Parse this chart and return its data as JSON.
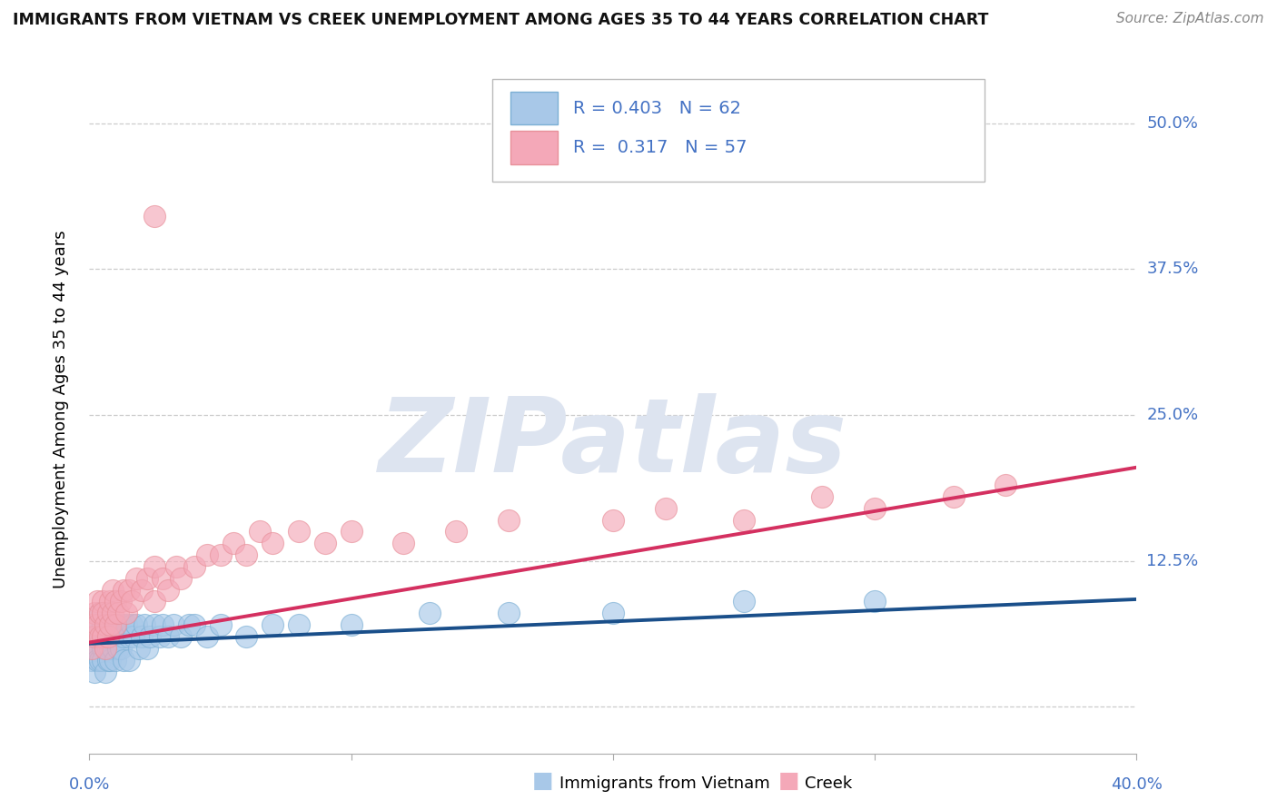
{
  "title": "IMMIGRANTS FROM VIETNAM VS CREEK UNEMPLOYMENT AMONG AGES 35 TO 44 YEARS CORRELATION CHART",
  "source": "Source: ZipAtlas.com",
  "ylabel": "Unemployment Among Ages 35 to 44 years",
  "legend1_label": "Immigrants from Vietnam",
  "legend2_label": "Creek",
  "R_vietnam": "0.403",
  "N_vietnam": 62,
  "R_creek": "0.317",
  "N_creek": 57,
  "xlim": [
    0.0,
    0.4
  ],
  "ylim": [
    -0.04,
    0.55
  ],
  "yticks": [
    0.0,
    0.125,
    0.25,
    0.375,
    0.5
  ],
  "ytick_right_labels": [
    "",
    "12.5%",
    "25.0%",
    "37.5%",
    "50.0%"
  ],
  "color_vietnam_face": "#a8c8e8",
  "color_vietnam_edge": "#7bafd4",
  "color_creek_face": "#f4a8b8",
  "color_creek_edge": "#e8909a",
  "line_color_vietnam": "#1a4f8a",
  "line_color_creek": "#d43060",
  "grid_color": "#cccccc",
  "watermark_color": "#dde4f0",
  "axis_label_color": "#4472c4",
  "legend_color": "#4472c4",
  "legend_creek_color": "#4472c4",
  "title_color": "#111111",
  "source_color": "#888888",
  "viet_x": [
    0.001,
    0.001,
    0.002,
    0.002,
    0.003,
    0.003,
    0.003,
    0.004,
    0.004,
    0.004,
    0.005,
    0.005,
    0.005,
    0.005,
    0.006,
    0.006,
    0.007,
    0.007,
    0.007,
    0.008,
    0.008,
    0.008,
    0.009,
    0.009,
    0.01,
    0.01,
    0.011,
    0.011,
    0.012,
    0.012,
    0.013,
    0.013,
    0.014,
    0.015,
    0.015,
    0.016,
    0.017,
    0.018,
    0.019,
    0.02,
    0.021,
    0.022,
    0.023,
    0.025,
    0.027,
    0.028,
    0.03,
    0.032,
    0.035,
    0.038,
    0.04,
    0.045,
    0.05,
    0.06,
    0.07,
    0.08,
    0.1,
    0.13,
    0.16,
    0.2,
    0.25,
    0.3
  ],
  "viet_y": [
    0.06,
    0.04,
    0.05,
    0.03,
    0.07,
    0.05,
    0.04,
    0.06,
    0.04,
    0.08,
    0.05,
    0.07,
    0.04,
    0.06,
    0.05,
    0.03,
    0.06,
    0.05,
    0.04,
    0.07,
    0.05,
    0.04,
    0.06,
    0.05,
    0.07,
    0.04,
    0.06,
    0.05,
    0.07,
    0.05,
    0.06,
    0.04,
    0.07,
    0.06,
    0.04,
    0.07,
    0.06,
    0.07,
    0.05,
    0.06,
    0.07,
    0.05,
    0.06,
    0.07,
    0.06,
    0.07,
    0.06,
    0.07,
    0.06,
    0.07,
    0.07,
    0.06,
    0.07,
    0.06,
    0.07,
    0.07,
    0.07,
    0.08,
    0.08,
    0.08,
    0.09,
    0.09
  ],
  "creek_x": [
    0.001,
    0.001,
    0.002,
    0.002,
    0.003,
    0.003,
    0.004,
    0.004,
    0.005,
    0.005,
    0.005,
    0.006,
    0.006,
    0.007,
    0.007,
    0.008,
    0.008,
    0.009,
    0.009,
    0.01,
    0.01,
    0.011,
    0.012,
    0.013,
    0.014,
    0.015,
    0.016,
    0.018,
    0.02,
    0.022,
    0.025,
    0.025,
    0.028,
    0.03,
    0.033,
    0.035,
    0.04,
    0.045,
    0.05,
    0.055,
    0.06,
    0.065,
    0.07,
    0.08,
    0.09,
    0.1,
    0.12,
    0.14,
    0.16,
    0.2,
    0.22,
    0.25,
    0.28,
    0.3,
    0.33,
    0.35,
    0.025
  ],
  "creek_y": [
    0.07,
    0.05,
    0.08,
    0.06,
    0.09,
    0.07,
    0.06,
    0.08,
    0.09,
    0.06,
    0.08,
    0.07,
    0.05,
    0.08,
    0.06,
    0.09,
    0.07,
    0.1,
    0.08,
    0.09,
    0.07,
    0.08,
    0.09,
    0.1,
    0.08,
    0.1,
    0.09,
    0.11,
    0.1,
    0.11,
    0.09,
    0.12,
    0.11,
    0.1,
    0.12,
    0.11,
    0.12,
    0.13,
    0.13,
    0.14,
    0.13,
    0.15,
    0.14,
    0.15,
    0.14,
    0.15,
    0.14,
    0.15,
    0.16,
    0.16,
    0.17,
    0.16,
    0.18,
    0.17,
    0.18,
    0.19,
    0.42
  ],
  "viet_line_x": [
    0.0,
    0.4
  ],
  "viet_line_y": [
    0.054,
    0.092
  ],
  "creek_line_x": [
    0.0,
    0.4
  ],
  "creek_line_y": [
    0.055,
    0.205
  ]
}
